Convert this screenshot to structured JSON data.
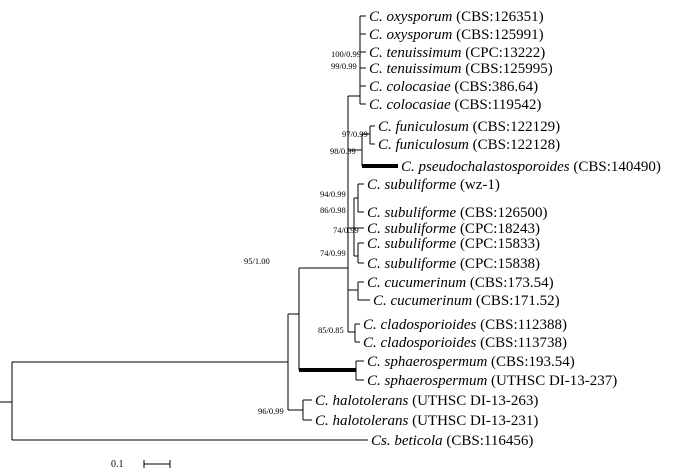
{
  "taxa": [
    {
      "genus": "C. oxysporum",
      "strain": "(CBS:126351)"
    },
    {
      "genus": "C. oxysporum",
      "strain": "(CBS:125991)"
    },
    {
      "genus": "C. tenuissimum",
      "strain": "(CPC:13222)"
    },
    {
      "genus": "C. tenuissimum",
      "strain": "(CBS:125995)"
    },
    {
      "genus": "C. colocasiae",
      "strain": "(CBS:386.64)"
    },
    {
      "genus": "C. colocasiae",
      "strain": "(CBS:119542)"
    },
    {
      "genus": "C. funiculosum",
      "strain": "(CBS:122129)"
    },
    {
      "genus": "C. funiculosum",
      "strain": "(CBS:122128)"
    },
    {
      "genus": "C. pseudochalastosporoides",
      "strain": "(CBS:140490)"
    },
    {
      "genus": "C. subuliforme",
      "strain": "(wz-1)"
    },
    {
      "genus": "C. subuliforme",
      "strain": "(CBS:126500)"
    },
    {
      "genus": "C. subuliforme",
      "strain": "(CPC:18243)"
    },
    {
      "genus": "C. subuliforme",
      "strain": "(CPC:15833)"
    },
    {
      "genus": "C. subuliforme",
      "strain": "(CPC:15838)"
    },
    {
      "genus": "C. cucumerinum",
      "strain": "(CBS:173.54)"
    },
    {
      "genus": "C. cucumerinum",
      "strain": "(CBS:171.52)"
    },
    {
      "genus": "C. cladosporioides",
      "strain": "(CBS:112388)"
    },
    {
      "genus": "C. cladosporioides",
      "strain": "(CBS:113738)"
    },
    {
      "genus": "C. sphaerospermum",
      "strain": "(CBS:193.54)"
    },
    {
      "genus": "C. sphaerospermum",
      "strain": "(UTHSC DI-13-237)"
    },
    {
      "genus": "C. halotolerans",
      "strain": "(UTHSC DI-13-263)"
    },
    {
      "genus": "C. halotolerans",
      "strain": "(UTHSC DI-13-231)"
    },
    {
      "genus": "Cs. beticola",
      "strain": "(CBS:116456)"
    }
  ],
  "supports": [
    "100/0.99",
    "99/0.99",
    "97/0.99",
    "98/0.99",
    "94/0.99",
    "86/0.98",
    "74/0.99",
    "74/0.99",
    "95/1.00",
    "85/0.85",
    "96/0.99"
  ],
  "scale_label": "0.1"
}
